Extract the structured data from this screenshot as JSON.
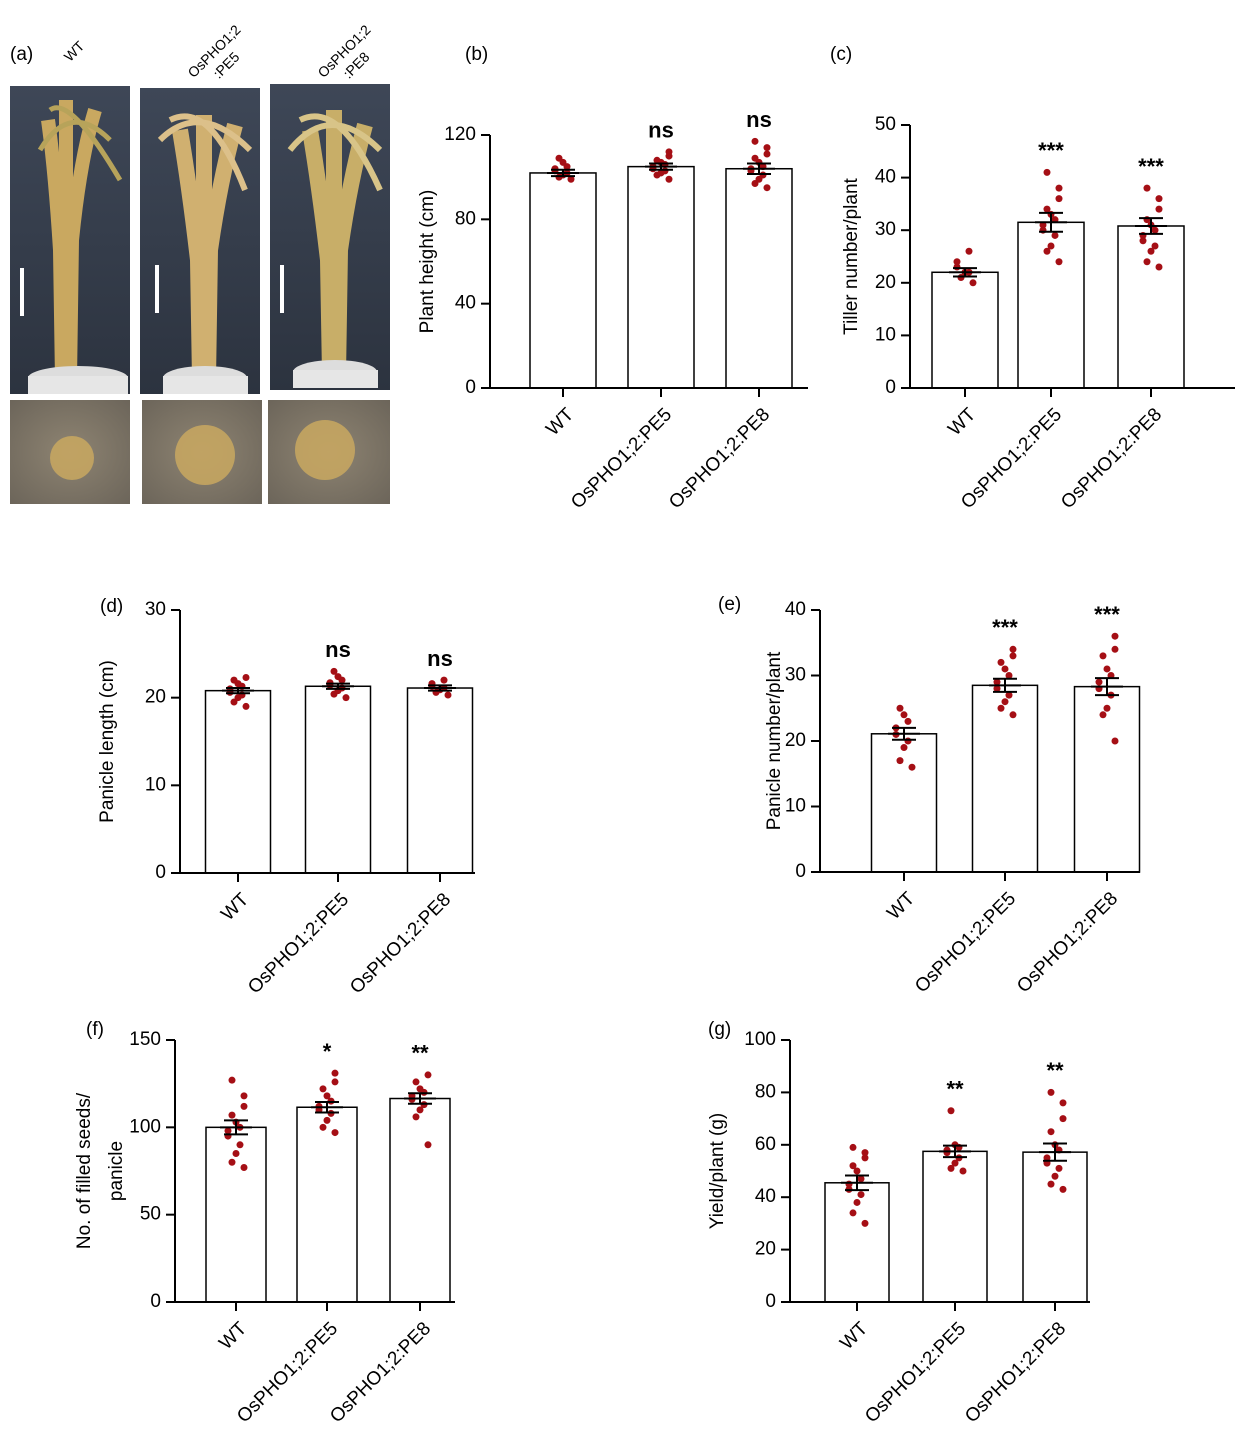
{
  "photo_panel": {
    "label": "(a)",
    "captions": [
      [
        "WT"
      ],
      [
        "OsPHO1;2",
        ":PE5"
      ],
      [
        "OsPHO1;2",
        ":PE8"
      ]
    ]
  },
  "chart_data": [
    {
      "type": "bar",
      "label": "(b)",
      "ylabel": "Plant height (cm)",
      "categories": [
        "WT",
        "OsPHO1;2:PE5",
        "OsPHO1;2:PE8"
      ],
      "values": [
        102,
        105,
        104
      ],
      "errors": [
        1.5,
        1.5,
        2.5
      ],
      "points": [
        [
          99,
          100,
          101,
          102,
          103,
          104,
          105,
          107,
          109
        ],
        [
          99,
          101,
          102,
          103,
          104,
          105,
          106,
          107,
          108,
          110,
          112
        ],
        [
          95,
          97,
          99,
          101,
          103,
          104,
          105,
          107,
          109,
          111,
          114,
          117
        ]
      ],
      "annotations": [
        null,
        "ns",
        "ns"
      ],
      "bar_color": "#ffffff",
      "point_color": "#a50f15",
      "ylim": [
        0,
        120
      ],
      "yticks": [
        0,
        40,
        80,
        120
      ]
    },
    {
      "type": "bar",
      "label": "(c)",
      "ylabel": "Tiller number/plant",
      "categories": [
        "WT",
        "OsPHO1;2:PE5",
        "OsPHO1;2:PE8"
      ],
      "values": [
        22,
        31.5,
        30.8
      ],
      "errors": [
        0.8,
        1.8,
        1.5
      ],
      "points": [
        [
          20,
          21,
          22,
          22,
          23,
          24,
          26
        ],
        [
          24,
          26,
          27,
          29,
          30,
          31,
          32,
          33,
          34,
          36,
          38,
          41
        ],
        [
          23,
          24,
          26,
          27,
          28,
          29,
          30,
          31,
          32,
          34,
          36,
          38
        ]
      ],
      "annotations": [
        null,
        "***",
        "***"
      ],
      "bar_color": "#ffffff",
      "point_color": "#a50f15",
      "ylim": [
        0,
        50
      ],
      "yticks": [
        0,
        10,
        20,
        30,
        40,
        50
      ]
    },
    {
      "type": "bar",
      "label": "(d)",
      "ylabel": "Panicle length (cm)",
      "categories": [
        "WT",
        "OsPHO1;2:PE5",
        "OsPHO1;2:PE8"
      ],
      "values": [
        20.8,
        21.3,
        21.1
      ],
      "errors": [
        0.3,
        0.3,
        0.3
      ],
      "points": [
        [
          19,
          19.5,
          20,
          20.3,
          20.6,
          21,
          21.3,
          21.6,
          22,
          22.3
        ],
        [
          20,
          20.4,
          20.8,
          21.1,
          21.4,
          21.7,
          22,
          22.4,
          23
        ],
        [
          20.3,
          20.6,
          20.9,
          21.1,
          21.3,
          21.6,
          22
        ]
      ],
      "annotations": [
        null,
        "ns",
        "ns"
      ],
      "bar_color": "#ffffff",
      "point_color": "#a50f15",
      "ylim": [
        0,
        30
      ],
      "yticks": [
        0,
        10,
        20,
        30
      ]
    },
    {
      "type": "bar",
      "label": "(e)",
      "ylabel": "Panicle number/plant",
      "categories": [
        "WT",
        "OsPHO1;2:PE5",
        "OsPHO1;2:PE8"
      ],
      "values": [
        21.1,
        28.5,
        28.3
      ],
      "errors": [
        0.9,
        1.0,
        1.3
      ],
      "points": [
        [
          16,
          17,
          19,
          20,
          21,
          22,
          23,
          24,
          25
        ],
        [
          24,
          25,
          26,
          27,
          28,
          29,
          30,
          31,
          32,
          33,
          34
        ],
        [
          20,
          24,
          25,
          27,
          28,
          29,
          30,
          31,
          33,
          34,
          36
        ]
      ],
      "annotations": [
        null,
        "***",
        "***"
      ],
      "bar_color": "#ffffff",
      "point_color": "#a50f15",
      "ylim": [
        0,
        40
      ],
      "yticks": [
        0,
        10,
        20,
        30,
        40
      ]
    },
    {
      "type": "bar",
      "label": "(f)",
      "ylabel": [
        "No. of filled seeds/",
        "panicle"
      ],
      "categories": [
        "WT",
        "OsPHO1;2:PE5",
        "OsPHO1;2:PE8"
      ],
      "values": [
        100,
        111.5,
        116.5
      ],
      "errors": [
        4,
        3,
        3
      ],
      "points": [
        [
          77,
          80,
          85,
          90,
          95,
          98,
          100,
          103,
          107,
          112,
          118,
          127
        ],
        [
          97,
          100,
          104,
          108,
          110,
          112,
          115,
          118,
          122,
          126,
          131
        ],
        [
          90,
          106,
          110,
          113,
          116,
          118,
          120,
          122,
          126,
          130
        ]
      ],
      "annotations": [
        null,
        "*",
        "**"
      ],
      "bar_color": "#ffffff",
      "point_color": "#a50f15",
      "ylim": [
        0,
        150
      ],
      "yticks": [
        0,
        50,
        100,
        150
      ]
    },
    {
      "type": "bar",
      "label": "(g)",
      "ylabel": "Yield/plant (g)",
      "categories": [
        "WT",
        "OsPHO1;2:PE5",
        "OsPHO1;2:PE8"
      ],
      "values": [
        45.5,
        57.5,
        57.2
      ],
      "errors": [
        2.8,
        2.2,
        3.3
      ],
      "points": [
        [
          30,
          34,
          38,
          41,
          43,
          45,
          47,
          50,
          52,
          55,
          57,
          59
        ],
        [
          50,
          51,
          53,
          55,
          57,
          58,
          59,
          60,
          73
        ],
        [
          43,
          45,
          48,
          51,
          53,
          55,
          58,
          60,
          65,
          70,
          76,
          80
        ]
      ],
      "annotations": [
        null,
        "**",
        "**"
      ],
      "bar_color": "#ffffff",
      "point_color": "#a50f15",
      "ylim": [
        0,
        100
      ],
      "yticks": [
        0,
        20,
        40,
        60,
        80,
        100
      ]
    }
  ]
}
